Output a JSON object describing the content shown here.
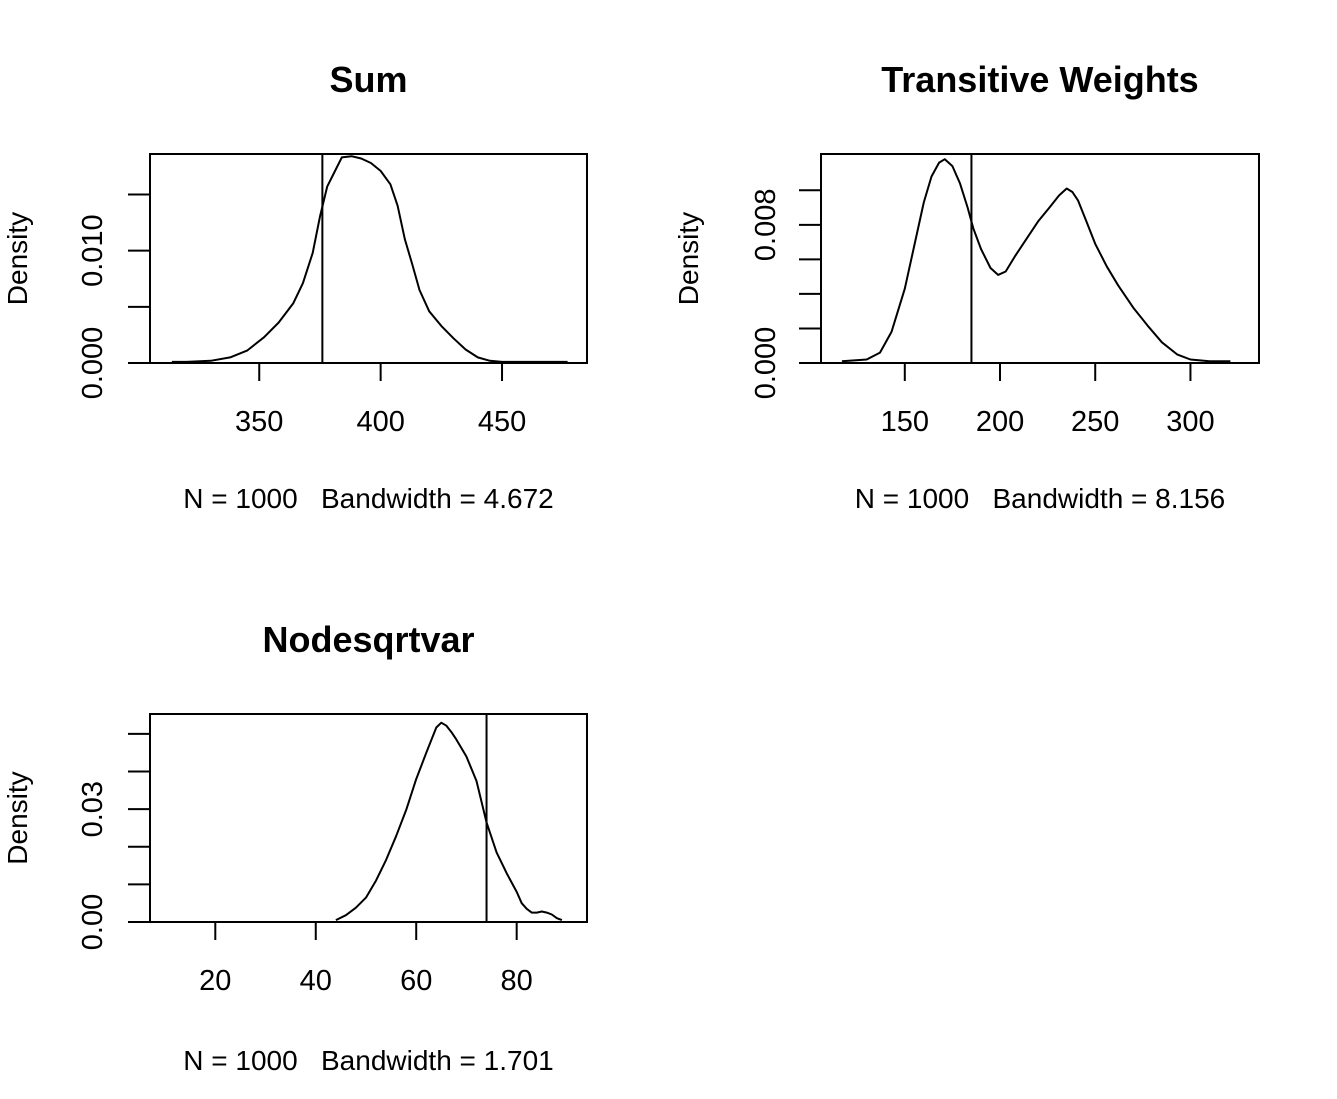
{
  "chart_data": [
    {
      "type": "line",
      "title": "Sum",
      "xlabel": "N = 1000   Bandwidth = 4.672",
      "ylabel": "Density",
      "xlim": [
        305,
        485
      ],
      "ylim": [
        0,
        0.0186
      ],
      "xticks": [
        350,
        400,
        450
      ],
      "yticks": [
        0,
        0.005,
        0.01,
        0.015
      ],
      "ytick_labels": [
        "0.000",
        "",
        "0.010",
        ""
      ],
      "vline": 376,
      "series": [
        {
          "x": [
            314,
            320,
            330,
            338,
            345,
            352,
            358,
            364,
            368,
            372,
            375,
            378,
            381,
            384,
            388,
            392,
            396,
            400,
            404,
            407,
            410,
            413,
            416,
            420,
            425,
            430,
            435,
            440,
            445,
            450,
            458,
            470,
            477
          ],
          "y": [
            0.0001,
            0.0001,
            0.0002,
            0.0005,
            0.0011,
            0.0023,
            0.0036,
            0.0053,
            0.0071,
            0.0098,
            0.013,
            0.0157,
            0.017,
            0.0183,
            0.0184,
            0.0182,
            0.0178,
            0.0171,
            0.0159,
            0.014,
            0.011,
            0.0088,
            0.0065,
            0.0046,
            0.0033,
            0.0022,
            0.0012,
            0.0005,
            0.0002,
            0.0001,
            0.0001,
            0.0001,
            0.0001
          ]
        }
      ]
    },
    {
      "type": "line",
      "title": "Transitive Weights",
      "xlabel": "N = 1000   Bandwidth = 8.156",
      "ylabel": "Density",
      "xlim": [
        106,
        336
      ],
      "ylim": [
        0,
        0.0121
      ],
      "xticks": [
        150,
        200,
        250,
        300
      ],
      "yticks": [
        0,
        0.002,
        0.004,
        0.006,
        0.008,
        0.01
      ],
      "ytick_labels": [
        "0.000",
        "",
        "",
        "",
        "0.008",
        ""
      ],
      "vline": 185,
      "series": [
        {
          "x": [
            117,
            130,
            137,
            143,
            150,
            156,
            160,
            164,
            168,
            171,
            175,
            179,
            183,
            186,
            190,
            195,
            199,
            203,
            208,
            214,
            220,
            226,
            231,
            235,
            238,
            241,
            245,
            250,
            256,
            262,
            270,
            278,
            285,
            293,
            300,
            310,
            321
          ],
          "y": [
            0.0001,
            0.0002,
            0.0006,
            0.0018,
            0.0043,
            0.0073,
            0.0093,
            0.0108,
            0.0116,
            0.0118,
            0.0114,
            0.0104,
            0.009,
            0.0078,
            0.0066,
            0.0055,
            0.0051,
            0.0053,
            0.0062,
            0.0072,
            0.0082,
            0.009,
            0.0097,
            0.0101,
            0.0099,
            0.0094,
            0.0083,
            0.0069,
            0.0056,
            0.0045,
            0.0032,
            0.0021,
            0.0012,
            0.0005,
            0.0002,
            0.0001,
            0.0001
          ]
        }
      ]
    },
    {
      "type": "line",
      "title": "Nodesqrtvar",
      "xlabel": "N = 1000   Bandwidth = 1.701",
      "ylabel": "Density",
      "xlim": [
        7,
        94
      ],
      "ylim": [
        0,
        0.0553
      ],
      "xticks": [
        20,
        40,
        60,
        80
      ],
      "yticks": [
        0,
        0.01,
        0.02,
        0.03,
        0.04,
        0.05
      ],
      "ytick_labels": [
        "0.00",
        "",
        "",
        "0.03",
        "",
        ""
      ],
      "vline": 74,
      "series": [
        {
          "x": [
            44,
            46,
            48,
            50,
            52,
            54,
            56,
            58,
            60,
            62,
            64,
            65,
            66,
            67,
            68,
            70,
            72,
            74,
            76,
            78,
            80,
            81,
            82,
            83,
            84,
            85,
            86,
            87,
            88,
            89
          ],
          "y": [
            0.0005,
            0.0018,
            0.0038,
            0.0065,
            0.011,
            0.0165,
            0.0228,
            0.0298,
            0.038,
            0.045,
            0.0517,
            0.053,
            0.0522,
            0.0505,
            0.0485,
            0.044,
            0.0375,
            0.0265,
            0.0185,
            0.013,
            0.008,
            0.005,
            0.0035,
            0.0025,
            0.0025,
            0.0028,
            0.0025,
            0.002,
            0.001,
            0.0005
          ]
        }
      ]
    }
  ]
}
